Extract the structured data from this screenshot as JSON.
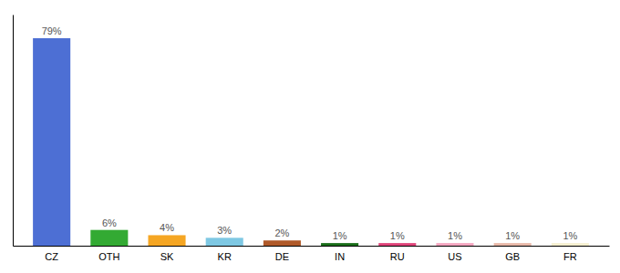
{
  "chart_data": {
    "type": "bar",
    "categories": [
      "CZ",
      "OTH",
      "SK",
      "KR",
      "DE",
      "IN",
      "RU",
      "US",
      "GB",
      "FR"
    ],
    "values": [
      79,
      6,
      4,
      3,
      2,
      1,
      1,
      1,
      1,
      1
    ],
    "value_labels": [
      "79%",
      "6%",
      "4%",
      "3%",
      "2%",
      "1%",
      "1%",
      "1%",
      "1%",
      "1%"
    ],
    "colors": [
      "#4d6fd4",
      "#33aa33",
      "#f5a623",
      "#7ec8e3",
      "#b05a2a",
      "#1a6e1a",
      "#e0447a",
      "#f4a6c0",
      "#e8b8a8",
      "#f5f0d0"
    ],
    "ylim": [
      0,
      88
    ],
    "data_labels": true,
    "tick_labels": "x"
  }
}
